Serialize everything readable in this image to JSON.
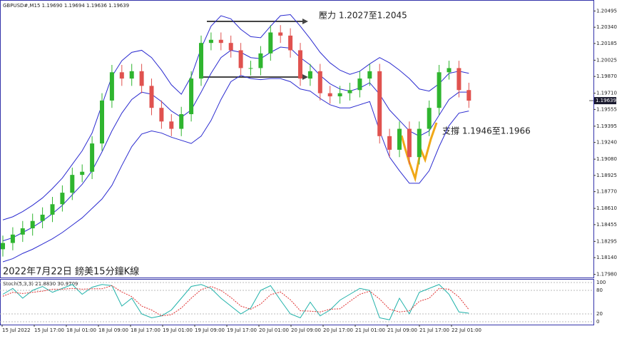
{
  "chart_data": {
    "type": "candlestick",
    "symbol_info": "GBPUSD#,M15  1.19690 1.19694 1.19636 1.19639",
    "title": "2022年7月22日 鎊美15分鐘K線",
    "annotations": [
      "壓力 1.2027至1.2045",
      "支撐 1.1946至1.1966"
    ],
    "x_labels": [
      "15 Jul 2022",
      "15 Jul 17:00",
      "18 Jul 01:00",
      "18 Jul 09:00",
      "18 Jul 17:00",
      "19 Jul 01:00",
      "19 Jul 09:00",
      "19 Jul 17:00",
      "20 Jul 01:00",
      "20 Jul 09:00",
      "20 Jul 17:00",
      "21 Jul 01:00",
      "21 Jul 09:00",
      "21 Jul 17:00",
      "22 Jul 01:00"
    ],
    "ylim": [
      1.1795,
      1.206
    ],
    "yticks": [
      1.20495,
      {
        "value": 1.2034,
        "label": "1.20340"
      },
      1.20185,
      1.20025,
      {
        "value": 1.1987,
        "label": "1.19870"
      },
      {
        "value": 1.1971,
        "label": "1.19710"
      },
      1.19555,
      1.19395,
      {
        "value": 1.1924,
        "label": "1.19240"
      },
      {
        "value": 1.1908,
        "label": "1.19080"
      },
      1.18925,
      {
        "value": 1.1877,
        "label": "1.18770"
      },
      {
        "value": 1.1861,
        "label": "1.18610"
      },
      1.18455,
      1.18295,
      {
        "value": 1.1814,
        "label": "1.18140"
      },
      {
        "value": 1.1798,
        "label": "1.17980"
      }
    ],
    "current_price": 1.19639,
    "up_color": "#2fb52f",
    "down_color": "#e0524f",
    "open": [
      1.1822,
      1.1828,
      1.1836,
      1.1842,
      1.1849,
      1.1855,
      1.1865,
      1.1876,
      1.1893,
      1.1896,
      1.1923,
      1.1964,
      1.1991,
      1.1985,
      1.1992,
      1.1978,
      1.1957,
      1.1944,
      1.1937,
      1.1951,
      1.1985,
      1.2019,
      1.2022,
      1.2019,
      1.2012,
      1.1995,
      1.1995,
      1.2009,
      1.2029,
      1.2026,
      1.2012,
      1.1985,
      1.1992,
      1.1971,
      1.1968,
      1.1971,
      1.1974,
      1.1985,
      1.1992,
      1.193,
      1.1917,
      1.1937,
      1.191,
      1.1937,
      1.1957,
      1.1991,
      1.1995,
      1.1974
    ],
    "high": [
      1.1835,
      1.1843,
      1.1849,
      1.1856,
      1.1862,
      1.1872,
      1.1883,
      1.19,
      1.1903,
      1.193,
      1.1971,
      1.1998,
      1.1998,
      1.1999,
      1.1999,
      1.1985,
      1.1964,
      1.1951,
      1.1958,
      1.1992,
      1.2026,
      1.2029,
      1.2029,
      1.2026,
      1.2019,
      1.2002,
      1.2016,
      1.2036,
      1.2036,
      1.2033,
      1.2019,
      1.1999,
      1.1999,
      1.1978,
      1.1978,
      1.1981,
      1.1992,
      1.1999,
      1.1999,
      1.1937,
      1.1944,
      1.1944,
      1.1944,
      1.1964,
      1.1998,
      1.2002,
      1.2002,
      1.1981
    ],
    "low": [
      1.1815,
      1.1821,
      1.1829,
      1.1835,
      1.1842,
      1.1848,
      1.1858,
      1.1869,
      1.1886,
      1.1889,
      1.1916,
      1.1957,
      1.1978,
      1.1978,
      1.1971,
      1.195,
      1.1937,
      1.193,
      1.193,
      1.1944,
      1.1978,
      1.2012,
      1.2012,
      1.2005,
      1.1988,
      1.1988,
      1.1988,
      1.2002,
      1.2019,
      1.2005,
      1.1978,
      1.1978,
      1.1964,
      1.1961,
      1.1961,
      1.1964,
      1.1967,
      1.1978,
      1.1923,
      1.191,
      1.191,
      1.1903,
      1.1903,
      1.193,
      1.195,
      1.1984,
      1.1967,
      1.1957
    ],
    "close": [
      1.1828,
      1.1836,
      1.1842,
      1.1849,
      1.1855,
      1.1865,
      1.1876,
      1.1893,
      1.1896,
      1.1923,
      1.1964,
      1.1991,
      1.1985,
      1.1992,
      1.1978,
      1.1957,
      1.1944,
      1.1937,
      1.1951,
      1.1985,
      1.2019,
      1.2022,
      1.2019,
      1.2012,
      1.1995,
      1.1995,
      1.2009,
      1.2029,
      1.2026,
      1.2012,
      1.1985,
      1.1992,
      1.1971,
      1.1968,
      1.1971,
      1.1974,
      1.1985,
      1.1992,
      1.193,
      1.1917,
      1.1937,
      1.191,
      1.1937,
      1.1957,
      1.1991,
      1.1995,
      1.1974,
      1.19639
    ],
    "bands_color": "#2b2bd0",
    "band_upper": [
      1.185,
      1.1853,
      1.1858,
      1.1864,
      1.1871,
      1.188,
      1.189,
      1.1903,
      1.1916,
      1.1933,
      1.196,
      1.1987,
      1.2002,
      1.201,
      1.2012,
      1.2005,
      1.1993,
      1.1979,
      1.197,
      1.1987,
      1.2014,
      1.2035,
      1.2045,
      1.2042,
      1.2032,
      1.2025,
      1.2024,
      1.2035,
      1.2045,
      1.2046,
      1.2035,
      1.2023,
      1.201,
      1.2,
      1.1993,
      1.1989,
      1.1992,
      1.1999,
      1.2005,
      1.2,
      1.1993,
      1.1985,
      1.1975,
      1.1973,
      1.198,
      1.199,
      1.1992,
      1.199
    ],
    "band_middle": [
      1.183,
      1.1833,
      1.1838,
      1.1843,
      1.1849,
      1.1856,
      1.1864,
      1.1874,
      1.1884,
      1.1897,
      1.1915,
      1.1935,
      1.1952,
      1.1965,
      1.1972,
      1.197,
      1.1963,
      1.1954,
      1.1948,
      1.1955,
      1.1972,
      1.199,
      1.2005,
      1.2012,
      1.201,
      1.2005,
      1.2004,
      1.201,
      1.2015,
      1.2014,
      1.2005,
      1.1998,
      1.1988,
      1.198,
      1.1975,
      1.1973,
      1.1976,
      1.1981,
      1.197,
      1.1955,
      1.1945,
      1.1935,
      1.193,
      1.1935,
      1.195,
      1.1965,
      1.1972,
      1.1972
    ],
    "band_lower": [
      1.181,
      1.1813,
      1.1818,
      1.1822,
      1.1827,
      1.1832,
      1.1838,
      1.1845,
      1.1852,
      1.1861,
      1.187,
      1.1883,
      1.1902,
      1.192,
      1.1932,
      1.1935,
      1.1933,
      1.1929,
      1.1926,
      1.1923,
      1.193,
      1.1945,
      1.1965,
      1.1982,
      1.1988,
      1.1985,
      1.1984,
      1.1985,
      1.1985,
      1.1982,
      1.1975,
      1.1973,
      1.1966,
      1.196,
      1.1957,
      1.1957,
      1.196,
      1.1963,
      1.1935,
      1.191,
      1.1897,
      1.1885,
      1.1885,
      1.1897,
      1.192,
      1.194,
      1.1952,
      1.1954
    ],
    "stoch": {
      "label": "Stoch(5,3,3) 21.8830 30.9709",
      "ylim": [
        0,
        100
      ],
      "yticks": [
        0,
        20,
        80,
        100
      ],
      "k_color": "#20b2aa",
      "d_color": "#e03030",
      "k": [
        70,
        85,
        60,
        80,
        90,
        75,
        85,
        95,
        70,
        88,
        95,
        92,
        40,
        60,
        20,
        10,
        15,
        30,
        60,
        90,
        95,
        85,
        60,
        40,
        20,
        35,
        80,
        92,
        55,
        20,
        10,
        50,
        15,
        30,
        55,
        70,
        85,
        80,
        10,
        5,
        60,
        20,
        75,
        85,
        95,
        70,
        25,
        21.883
      ],
      "d": [
        65,
        75,
        72,
        75,
        78,
        83,
        83,
        85,
        83,
        84,
        84,
        92,
        76,
        64,
        40,
        30,
        15,
        18,
        35,
        60,
        82,
        90,
        80,
        62,
        40,
        32,
        45,
        69,
        76,
        56,
        28,
        27,
        25,
        32,
        33,
        52,
        70,
        78,
        58,
        32,
        25,
        28,
        52,
        60,
        85,
        83,
        63,
        30.9709
      ]
    }
  }
}
